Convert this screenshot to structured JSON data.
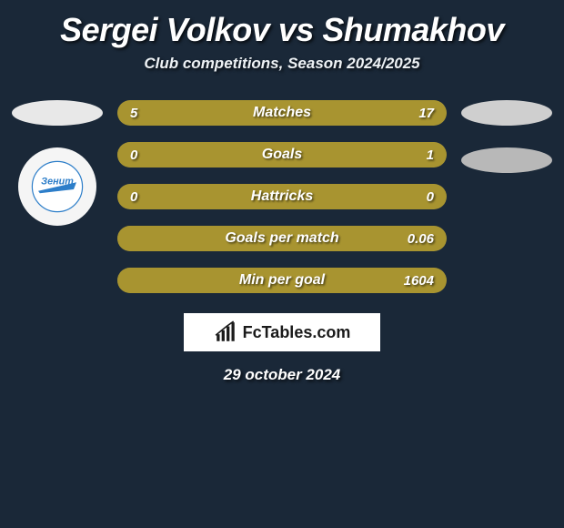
{
  "title": "Sergei Volkov vs Shumakhov",
  "subtitle": "Club competitions, Season 2024/2025",
  "date": "29 october 2024",
  "branding": "FcTables.com",
  "colors": {
    "background": "#1a2838",
    "bar_left": "#a89430",
    "bar_right": "#a89430",
    "bar_base": "#6a6948",
    "text": "#ffffff"
  },
  "rows": [
    {
      "label": "Matches",
      "left": "5",
      "right": "17",
      "left_fill_pct": 23,
      "right_fill_pct": 77
    },
    {
      "label": "Goals",
      "left": "0",
      "right": "1",
      "left_fill_pct": 0,
      "right_fill_pct": 100
    },
    {
      "label": "Hattricks",
      "left": "0",
      "right": "0",
      "left_fill_pct": 50,
      "right_fill_pct": 50
    },
    {
      "label": "Goals per match",
      "left": "",
      "right": "0.06",
      "left_fill_pct": 0,
      "right_fill_pct": 100
    },
    {
      "label": "Min per goal",
      "left": "",
      "right": "1604",
      "left_fill_pct": 0,
      "right_fill_pct": 100
    }
  ]
}
